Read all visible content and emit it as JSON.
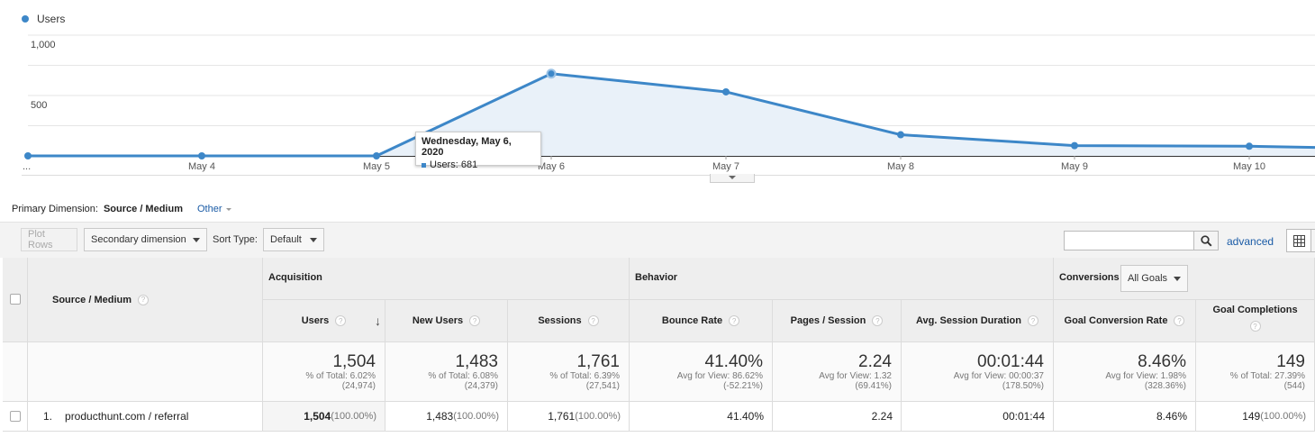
{
  "chart": {
    "legend_label": "Users",
    "series_color": "#3d87c8",
    "y_ticks": [
      "1,000",
      "500"
    ],
    "x_first_label": "...",
    "tooltip": {
      "title": "Wednesday, May 6, 2020",
      "line": "Users: 681"
    }
  },
  "chart_data": {
    "type": "line",
    "title": "",
    "xlabel": "",
    "ylabel": "",
    "ylim": [
      0,
      1000
    ],
    "categories": [
      "...",
      "May 4",
      "May 5",
      "May 6",
      "May 7",
      "May 8",
      "May 9",
      "May 10",
      ""
    ],
    "series": [
      {
        "name": "Users",
        "values": [
          0,
          0,
          0,
          681,
          530,
          175,
          85,
          80,
          70
        ]
      }
    ]
  },
  "primary_dimension": {
    "label": "Primary Dimension:",
    "value": "Source / Medium",
    "other": "Other"
  },
  "toolbar": {
    "plot_rows": "Plot Rows",
    "secondary_dimension": "Secondary dimension",
    "sort_type_label": "Sort Type:",
    "sort_type_value": "Default",
    "advanced": "advanced"
  },
  "table": {
    "dimension_header": "Source / Medium",
    "groups": {
      "acquisition": "Acquisition",
      "behavior": "Behavior",
      "conversions": "Conversions",
      "goals_select": "All Goals"
    },
    "columns": [
      "Users",
      "New Users",
      "Sessions",
      "Bounce Rate",
      "Pages / Session",
      "Avg. Session Duration",
      "Goal Conversion Rate",
      "Goal Completions"
    ],
    "totals": [
      {
        "big": "1,504",
        "line1": "% of Total: 6.02%",
        "line2": "(24,974)"
      },
      {
        "big": "1,483",
        "line1": "% of Total: 6.08%",
        "line2": "(24,379)"
      },
      {
        "big": "1,761",
        "line1": "% of Total: 6.39%",
        "line2": "(27,541)"
      },
      {
        "big": "41.40%",
        "line1": "Avg for View: 86.62%",
        "line2": "(-52.21%)"
      },
      {
        "big": "2.24",
        "line1": "Avg for View: 1.32",
        "line2": "(69.41%)"
      },
      {
        "big": "00:01:44",
        "line1": "Avg for View: 00:00:37",
        "line2": "(178.50%)"
      },
      {
        "big": "8.46%",
        "line1": "Avg for View: 1.98%",
        "line2": "(328.36%)"
      },
      {
        "big": "149",
        "line1": "% of Total: 27.39%",
        "line2": "(544)"
      }
    ],
    "rows": [
      {
        "index": "1.",
        "name": "producthunt.com / referral",
        "cells": [
          {
            "v": "1,504",
            "p": "(100.00%)"
          },
          {
            "v": "1,483",
            "p": "(100.00%)"
          },
          {
            "v": "1,761",
            "p": "(100.00%)"
          },
          {
            "v": "41.40%",
            "p": ""
          },
          {
            "v": "2.24",
            "p": ""
          },
          {
            "v": "00:01:44",
            "p": ""
          },
          {
            "v": "8.46%",
            "p": ""
          },
          {
            "v": "149",
            "p": "(100.00%)"
          }
        ]
      }
    ]
  }
}
